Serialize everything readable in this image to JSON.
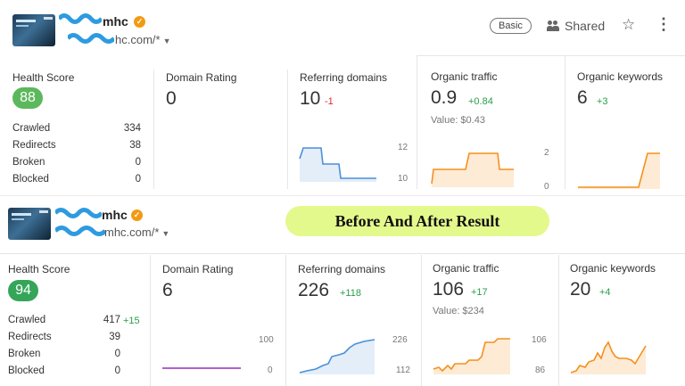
{
  "before": {
    "site_name": "mhc",
    "site_url": "hc.com/*",
    "plan_badge": "Basic",
    "shared_label": "Shared",
    "health_score": {
      "label": "Health Score",
      "value": "88"
    },
    "stats": [
      {
        "label": "Crawled",
        "value": "334"
      },
      {
        "label": "Redirects",
        "value": "38"
      },
      {
        "label": "Broken",
        "value": "0"
      },
      {
        "label": "Blocked",
        "value": "0"
      }
    ],
    "domain_rating": {
      "label": "Domain Rating",
      "value": "0"
    },
    "referring_domains": {
      "label": "Referring domains",
      "value": "10",
      "delta": "-1",
      "axis_max": "12",
      "axis_min": "10"
    },
    "organic_traffic": {
      "label": "Organic traffic",
      "value": "0.9",
      "delta": "+0.84",
      "subtext": "Value: $0.43",
      "axis_max": "2",
      "axis_min": "0"
    },
    "organic_keywords": {
      "label": "Organic keywords",
      "value": "6",
      "delta": "+3"
    }
  },
  "after": {
    "site_name": "mhc",
    "site_url": "mhc.com/*",
    "health_score": {
      "label": "Health Score",
      "value": "94"
    },
    "stats": [
      {
        "label": "Crawled",
        "value": "417",
        "delta": "+15"
      },
      {
        "label": "Redirects",
        "value": "39"
      },
      {
        "label": "Broken",
        "value": "0"
      },
      {
        "label": "Blocked",
        "value": "0"
      }
    ],
    "domain_rating": {
      "label": "Domain Rating",
      "value": "6",
      "axis_max": "100",
      "axis_min": "0"
    },
    "referring_domains": {
      "label": "Referring domains",
      "value": "226",
      "delta": "+118",
      "axis_max": "226",
      "axis_min": "112"
    },
    "organic_traffic": {
      "label": "Organic traffic",
      "value": "106",
      "delta": "+17",
      "subtext": "Value: $234",
      "axis_max": "106",
      "axis_min": "86"
    },
    "organic_keywords": {
      "label": "Organic keywords",
      "value": "20",
      "delta": "+4"
    }
  },
  "banner": "Before And After Result",
  "colors": {
    "blue_line": "#4a90d9",
    "orange_line": "#f5901e",
    "purple_line": "#a64ac9",
    "positive": "#2a9d4a",
    "negative": "#e0282e",
    "banner_bg": "#e3f98c"
  },
  "icons": [
    "verified-badge-icon",
    "caret-down-icon",
    "people-icon",
    "star-icon",
    "more-vertical-icon"
  ]
}
